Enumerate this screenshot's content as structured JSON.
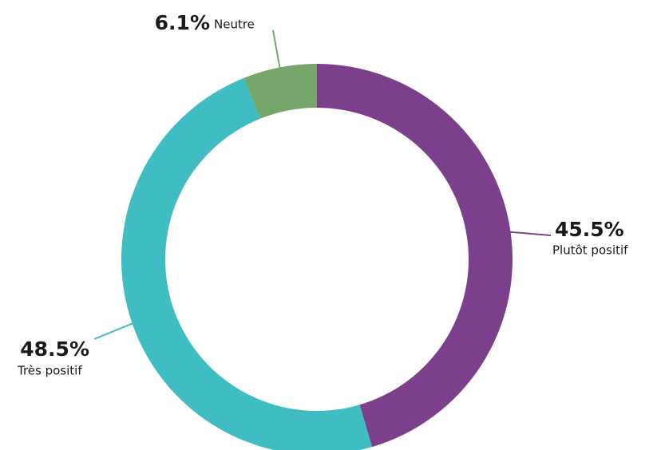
{
  "chart_data": {
    "type": "donut",
    "categories": [
      "Plutôt positif",
      "Très positif",
      "Neutre"
    ],
    "values": [
      45.5,
      48.5,
      6.1
    ],
    "value_labels": [
      "45.5%",
      "48.5%",
      "6.1%"
    ],
    "colors": [
      "#7b3f8c",
      "#40bcc3",
      "#76a66a"
    ]
  }
}
